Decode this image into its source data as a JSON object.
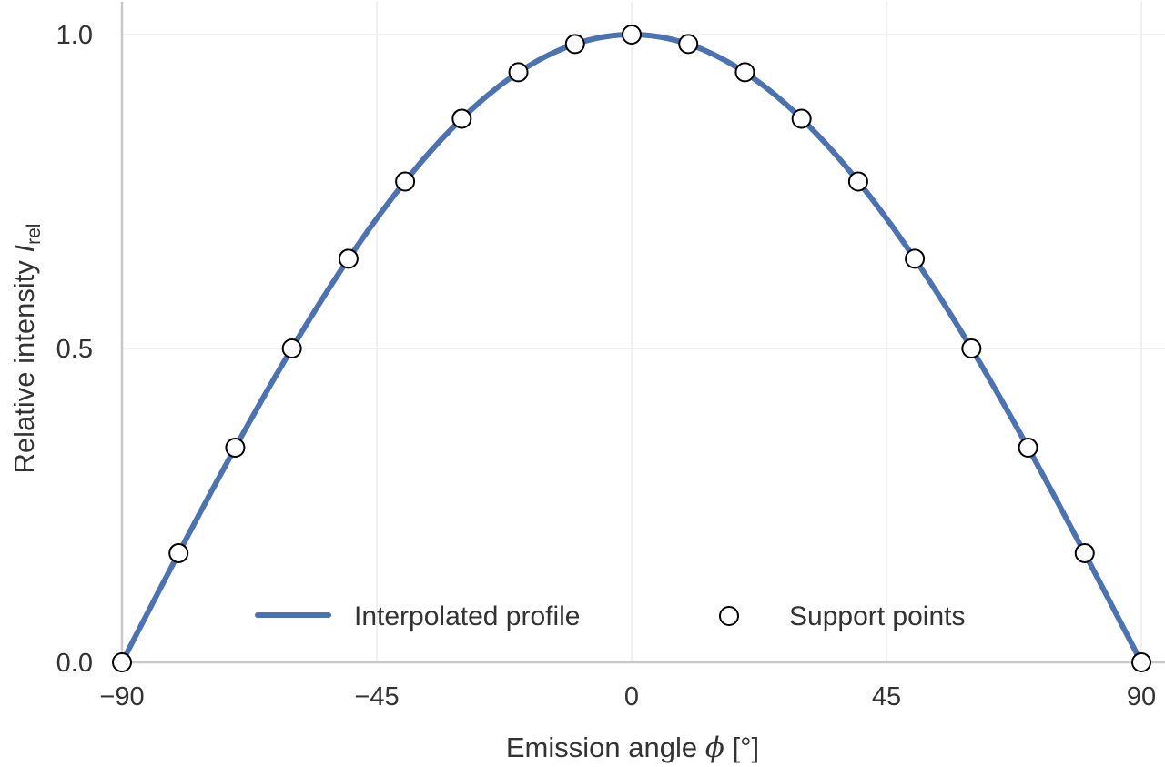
{
  "chart_data": {
    "type": "line",
    "title": "",
    "xlabel": {
      "text": "Emission angle ",
      "symbol": "ϕ",
      "unit": " [°]"
    },
    "ylabel": {
      "text": "Relative intensity ",
      "symbol": "I",
      "subscript": "rel"
    },
    "xlim": [
      -90,
      90
    ],
    "ylim": [
      0,
      1
    ],
    "xticks": [
      -90,
      -45,
      0,
      45,
      90
    ],
    "xtick_labels": [
      "−90",
      "−45",
      "0",
      "45",
      "90"
    ],
    "yticks": [
      0,
      0.5,
      1
    ],
    "ytick_labels": [
      "0.0",
      "0.5",
      "1.0"
    ],
    "grid": true,
    "legend_position": "bottom-center",
    "series": [
      {
        "name": "Interpolated profile",
        "kind": "line",
        "color": "#4c72b0",
        "function": "cos(phi)",
        "x_range": [
          -90,
          90
        ]
      },
      {
        "name": "Support points",
        "kind": "scatter",
        "color": "#000000",
        "x": [
          -90,
          -80,
          -70,
          -60,
          -50,
          -40,
          -30,
          -20,
          -10,
          0,
          10,
          20,
          30,
          40,
          50,
          60,
          70,
          80,
          90
        ],
        "y": [
          0.0,
          0.174,
          0.342,
          0.5,
          0.643,
          0.766,
          0.866,
          0.94,
          0.985,
          1.0,
          0.985,
          0.94,
          0.866,
          0.766,
          0.643,
          0.5,
          0.342,
          0.174,
          0.0
        ]
      }
    ]
  }
}
